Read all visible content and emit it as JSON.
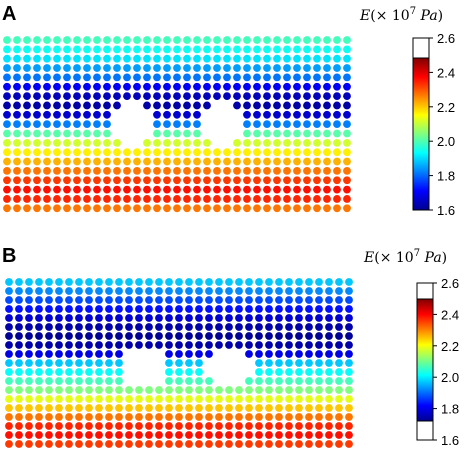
{
  "chart_data": [
    {
      "type": "scatter",
      "panel_label": "A",
      "colorbar": {
        "title": "E(× 10^7 Pa)",
        "ticks": [
          "2.6",
          "2.4",
          "2.2",
          "2.0",
          "1.8",
          "1.6"
        ],
        "range": [
          1.6,
          2.6
        ],
        "colormap": "jet",
        "top_white_segment": true
      },
      "grid": {
        "rows": 19,
        "cols": 35
      },
      "holes": [
        {
          "center_col": 12.5,
          "center_row": 9.0,
          "radius": 2.2
        },
        {
          "center_col": 21.5,
          "center_row": 9.0,
          "radius": 2.2
        }
      ],
      "row_values_top_to_bottom": [
        2.04,
        1.99,
        1.95,
        1.88,
        1.84,
        1.72,
        1.66,
        1.64,
        1.68,
        1.85,
        2.06,
        2.18,
        2.24,
        2.3,
        2.36,
        2.42,
        2.46,
        2.44,
        2.36
      ]
    },
    {
      "type": "scatter",
      "panel_label": "B",
      "colorbar": {
        "title": "E(× 10^7 Pa)",
        "ticks": [
          "2.6",
          "2.4",
          "2.2",
          "2.0",
          "1.8",
          "1.6"
        ],
        "range": [
          1.6,
          2.6
        ],
        "colormap": "jet",
        "top_white_segment": true,
        "bottom_white_segment": true
      },
      "grid": {
        "rows": 19,
        "cols": 35
      },
      "holes": [
        {
          "center_col": 13.5,
          "center_row": 9.5,
          "radius": 2.2
        },
        {
          "center_col": 22.0,
          "center_row": 9.5,
          "radius": 2.2
        }
      ],
      "row_values_top_to_bottom": [
        1.92,
        1.86,
        1.8,
        1.74,
        1.68,
        1.64,
        1.62,
        1.64,
        1.7,
        1.92,
        1.98,
        2.04,
        2.1,
        2.2,
        2.28,
        2.36,
        2.44,
        2.46,
        2.42
      ]
    }
  ]
}
